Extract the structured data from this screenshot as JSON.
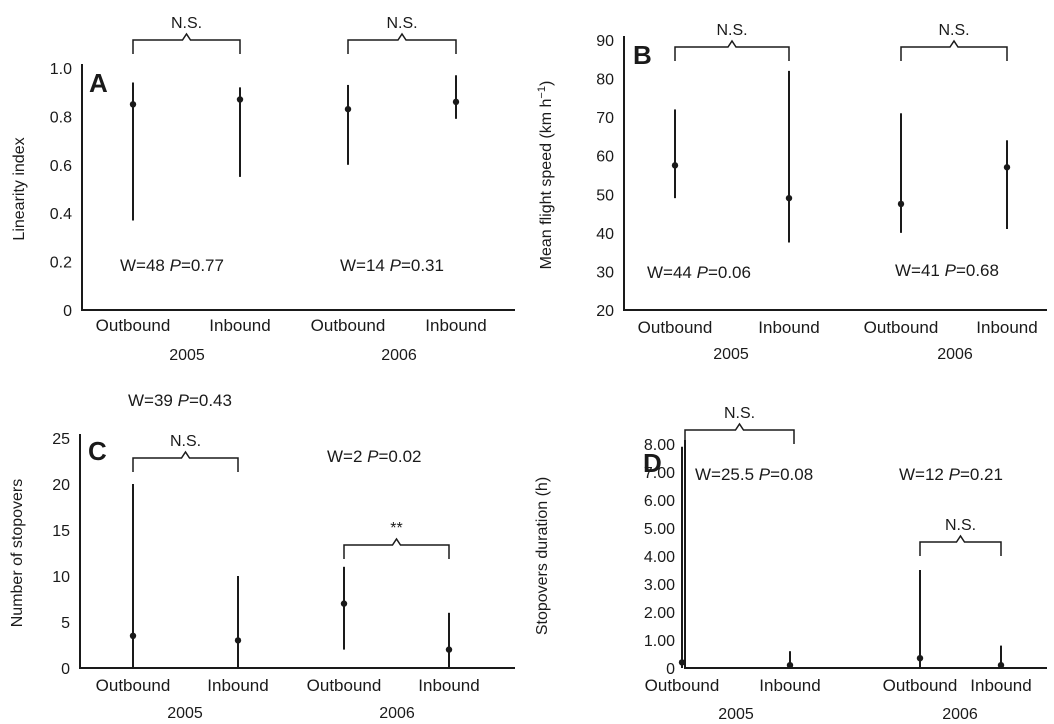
{
  "chart_data": [
    {
      "type": "scatter",
      "panel_label": "A",
      "ylabel": "Linearity index",
      "ylim": [
        0,
        1.0
      ],
      "yticks": [
        "0",
        "0.2",
        "0.4",
        "0.6",
        "0.8",
        "1.0"
      ],
      "ytick_values": [
        0,
        0.2,
        0.4,
        0.6,
        0.8,
        1.0
      ],
      "categories": [
        "Outbound",
        "Inbound",
        "Outbound",
        "Inbound"
      ],
      "groups": [
        "2005",
        "2006"
      ],
      "points": [
        {
          "category": "Outbound",
          "year": "2005",
          "median": 0.85,
          "min": 0.37,
          "max": 0.94
        },
        {
          "category": "Inbound",
          "year": "2005",
          "median": 0.87,
          "min": 0.55,
          "max": 0.92
        },
        {
          "category": "Outbound",
          "year": "2006",
          "median": 0.83,
          "min": 0.6,
          "max": 0.93
        },
        {
          "category": "Inbound",
          "year": "2006",
          "median": 0.86,
          "min": 0.79,
          "max": 0.97
        }
      ],
      "brackets": [
        {
          "label": "N.S.",
          "from": 0,
          "to": 1
        },
        {
          "label": "N.S.",
          "from": 2,
          "to": 3
        }
      ],
      "stats": [
        {
          "W": "W=48 ",
          "P_label": "P",
          "P_value": "=0.77"
        },
        {
          "W": "W=14 ",
          "P_label": "P",
          "P_value": "=0.31"
        }
      ]
    },
    {
      "type": "scatter",
      "panel_label": "B",
      "ylabel": "Mean flight speed (km h",
      "ylabel_sup": "−1",
      "ylabel_end": ")",
      "ylim": [
        20,
        90
      ],
      "yticks": [
        "20",
        "30",
        "40",
        "50",
        "60",
        "70",
        "80",
        "90"
      ],
      "ytick_values": [
        20,
        30,
        40,
        50,
        60,
        70,
        80,
        90
      ],
      "categories": [
        "Outbound",
        "Inbound",
        "Outbound",
        "Inbound"
      ],
      "groups": [
        "2005",
        "2006"
      ],
      "points": [
        {
          "category": "Outbound",
          "year": "2005",
          "median": 57.5,
          "min": 49,
          "max": 72
        },
        {
          "category": "Inbound",
          "year": "2005",
          "median": 49,
          "min": 37.5,
          "max": 82
        },
        {
          "category": "Outbound",
          "year": "2006",
          "median": 47.5,
          "min": 40,
          "max": 71
        },
        {
          "category": "Inbound",
          "year": "2006",
          "median": 57,
          "min": 41,
          "max": 64
        }
      ],
      "brackets": [
        {
          "label": "N.S.",
          "from": 0,
          "to": 1
        },
        {
          "label": "N.S.",
          "from": 2,
          "to": 3
        }
      ],
      "stats": [
        {
          "W": "W=44 ",
          "P_label": "P",
          "P_value": "=0.06"
        },
        {
          "W": "W=41 ",
          "P_label": "P",
          "P_value": "=0.68"
        }
      ]
    },
    {
      "type": "scatter",
      "panel_label": "C",
      "ylabel": "Number of stopovers",
      "ylim": [
        0,
        25
      ],
      "yticks": [
        "0",
        "5",
        "10",
        "15",
        "20",
        "25"
      ],
      "ytick_values": [
        0,
        5,
        10,
        15,
        20,
        25
      ],
      "categories": [
        "Outbound",
        "Inbound",
        "Outbound",
        "Inbound"
      ],
      "groups": [
        "2005",
        "2006"
      ],
      "points": [
        {
          "category": "Outbound",
          "year": "2005",
          "median": 3.5,
          "min": 0,
          "max": 20
        },
        {
          "category": "Inbound",
          "year": "2005",
          "median": 3,
          "min": 0,
          "max": 10
        },
        {
          "category": "Outbound",
          "year": "2006",
          "median": 7,
          "min": 2,
          "max": 11
        },
        {
          "category": "Inbound",
          "year": "2006",
          "median": 2,
          "min": 0,
          "max": 6
        }
      ],
      "brackets": [
        {
          "label": "N.S.",
          "from": 0,
          "to": 1
        },
        {
          "label": "**",
          "from": 2,
          "to": 3
        }
      ],
      "stats": [
        {
          "W": "W=39 ",
          "P_label": "P",
          "P_value": "=0.43"
        },
        {
          "W": "W=2 ",
          "P_label": "P",
          "P_value": "=0.02"
        }
      ]
    },
    {
      "type": "scatter",
      "panel_label": "D",
      "ylabel": "Stopovers duration (h)",
      "ylim": [
        0,
        8
      ],
      "yticks": [
        "0",
        "1.00",
        "2.00",
        "3.00",
        "4.00",
        "5.00",
        "6.00",
        "7.00",
        "8.00"
      ],
      "ytick_values": [
        0,
        1,
        2,
        3,
        4,
        5,
        6,
        7,
        8
      ],
      "categories": [
        "Outbound",
        "Inbound",
        "Outbound",
        "Inbound"
      ],
      "groups": [
        "2005",
        "2006"
      ],
      "points": [
        {
          "category": "Outbound",
          "year": "2005",
          "median": 0.2,
          "min": 0,
          "max": 7.9
        },
        {
          "category": "Inbound",
          "year": "2005",
          "median": 0.1,
          "min": 0,
          "max": 0.6
        },
        {
          "category": "Outbound",
          "year": "2006",
          "median": 0.35,
          "min": 0,
          "max": 3.5
        },
        {
          "category": "Inbound",
          "year": "2006",
          "median": 0.1,
          "min": 0,
          "max": 0.8
        }
      ],
      "brackets": [
        {
          "label": "N.S.",
          "from": 0,
          "to": 1
        },
        {
          "label": "N.S.",
          "from": 2,
          "to": 3
        }
      ],
      "stats": [
        {
          "W": "W=25.5 ",
          "P_label": "P",
          "P_value": "=0.08"
        },
        {
          "W": "W=12 ",
          "P_label": "P",
          "P_value": "=0.21"
        }
      ]
    }
  ]
}
